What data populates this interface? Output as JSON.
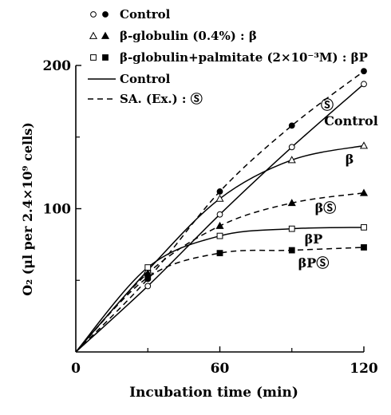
{
  "chart_data": {
    "type": "line",
    "xlabel": "Incubation time (min)",
    "ylabel": "O₂ (μl per 2.4×10⁹ cells)",
    "xlim": [
      0,
      120
    ],
    "ylim": [
      0,
      200
    ],
    "xticks": [
      0,
      60,
      120
    ],
    "yticks": [
      100,
      200
    ],
    "x_tick_labels": [
      "0",
      "60",
      "120"
    ],
    "y_tick_labels": [
      "100",
      "200"
    ],
    "grid": false,
    "legend_placement": "top-left",
    "legend": [
      {
        "markers": "open-circle, filled-circle",
        "text": "Control"
      },
      {
        "markers": "open-triangle, filled-triangle",
        "text": "β-globulin (0.4%) : β"
      },
      {
        "markers": "open-square, filled-square",
        "text": "β-globulin+palmitate (2×10⁻³M) : βP"
      },
      {
        "line": "solid",
        "text": "Control"
      },
      {
        "line": "dashed",
        "text": "SA. (Ex.) : Ⓢ"
      }
    ],
    "series": [
      {
        "label": "Control",
        "line": "solid",
        "marker": "open-circle",
        "x": [
          0,
          30,
          60,
          90,
          120
        ],
        "y": [
          0,
          46,
          96,
          143,
          187
        ]
      },
      {
        "label": "Ⓢ",
        "line": "dashed",
        "marker": "filled-circle",
        "x": [
          0,
          30,
          60,
          90,
          120
        ],
        "y": [
          0,
          51,
          112,
          158,
          196
        ]
      },
      {
        "label": "β",
        "line": "solid",
        "marker": "open-triangle",
        "x": [
          0,
          30,
          60,
          90,
          120
        ],
        "y": [
          0,
          57,
          107,
          134,
          144
        ]
      },
      {
        "label": "βⓈ",
        "line": "dashed",
        "marker": "filled-triangle",
        "x": [
          0,
          30,
          60,
          90,
          120
        ],
        "y": [
          0,
          55,
          88,
          104,
          111
        ]
      },
      {
        "label": "βP",
        "line": "solid",
        "marker": "open-square",
        "x": [
          0,
          30,
          60,
          90,
          120
        ],
        "y": [
          0,
          59,
          81,
          86,
          87
        ]
      },
      {
        "label": "βPⓈ",
        "line": "dashed",
        "marker": "filled-square",
        "x": [
          0,
          30,
          60,
          90,
          120
        ],
        "y": [
          0,
          52,
          69,
          71,
          73
        ]
      }
    ]
  }
}
